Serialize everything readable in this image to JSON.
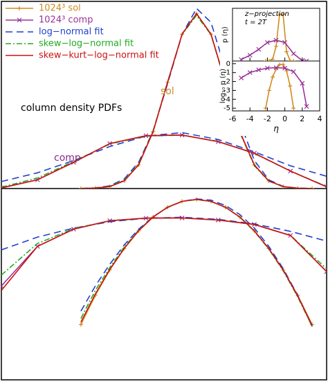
{
  "chart_data": [
    {
      "type": "line",
      "xlim": [
        -3,
        1.5
      ],
      "panels": [
        {
          "scale": "linear",
          "ylim": [
            0,
            1.07
          ]
        },
        {
          "scale": "log",
          "ylim": [
            1e-05,
            2
          ]
        }
      ],
      "legend": "upper left",
      "annotations": [
        {
          "text": "sol",
          "color": "#c98a2a"
        },
        {
          "text": "comp",
          "color": "#8a2a8a"
        },
        {
          "text": "column density PDFs",
          "color": "#000000"
        }
      ],
      "series": [
        {
          "name": "1024³  sol",
          "color": "#d08a20",
          "marker": "+",
          "x": [
            -1.9,
            -1.7,
            -1.5,
            -1.3,
            -1.1,
            -0.9,
            -0.7,
            -0.5,
            -0.3,
            -0.1,
            0.1,
            0.3,
            0.5,
            0.7,
            0.9,
            1.1,
            1.3
          ],
          "values": [
            0.00034,
            0.0022,
            0.0111,
            0.0439,
            0.135,
            0.325,
            0.607,
            0.882,
            1,
            0.882,
            0.607,
            0.325,
            0.135,
            0.0439,
            0.0111,
            0.0022,
            0.00034
          ]
        },
        {
          "name": "1024³  comp",
          "color": "#993399",
          "marker": "x",
          "x": [
            -3,
            -2.5,
            -2,
            -1.5,
            -1,
            -0.5,
            0,
            0.5,
            1,
            1.5
          ],
          "values": [
            0.004,
            0.05,
            0.15,
            0.257,
            0.302,
            0.306,
            0.268,
            0.202,
            0.1,
            0.01
          ]
        },
        {
          "name": "log−normal fit",
          "color": "#1f3fd0",
          "dash": "10,6",
          "x": [
            -1.9,
            -1.7,
            -1.5,
            -1.3,
            -1.1,
            -0.9,
            -0.7,
            -0.5,
            -0.3,
            -0.1,
            0.1,
            0.3,
            0.5,
            0.7,
            0.9,
            1.1,
            1.3,
            null,
            -3,
            -2.5,
            -2,
            -1.5,
            -1,
            -0.5,
            0,
            0.5,
            1,
            1.5
          ],
          "values": [
            0.0008,
            0.004,
            0.016,
            0.055,
            0.15,
            0.33,
            0.6,
            0.88,
            1.03,
            0.95,
            0.68,
            0.38,
            0.16,
            0.05,
            0.012,
            0.0022,
            0.0003,
            null,
            0.04,
            0.09,
            0.16,
            0.24,
            0.3,
            0.32,
            0.28,
            0.21,
            0.13,
            0.07
          ]
        },
        {
          "name": "skew−log−normal fit",
          "color": "#22aa22",
          "dash": "8,3,2,3",
          "x": [
            -1.9,
            -1.7,
            -1.5,
            -1.3,
            -1.1,
            -0.9,
            -0.7,
            -0.5,
            -0.3,
            -0.1,
            0.1,
            0.3,
            0.5,
            0.7,
            0.9,
            1.1,
            1.3,
            null,
            -3,
            -2.5,
            -2,
            -1.5,
            -1,
            -0.5,
            0,
            0.5,
            1,
            1.5
          ],
          "values": [
            0.0005,
            0.003,
            0.013,
            0.048,
            0.14,
            0.33,
            0.61,
            0.88,
            0.99,
            0.88,
            0.6,
            0.32,
            0.13,
            0.042,
            0.0105,
            0.002,
            0.0003,
            null,
            0.008,
            0.06,
            0.155,
            0.255,
            0.3,
            0.305,
            0.27,
            0.2,
            0.1,
            0.012
          ]
        },
        {
          "name": "skew−kurt−log−normal fit",
          "color": "#cc1111",
          "x": [
            -1.9,
            -1.7,
            -1.5,
            -1.3,
            -1.1,
            -0.9,
            -0.7,
            -0.5,
            -0.3,
            -0.1,
            0.1,
            0.3,
            0.5,
            0.7,
            0.9,
            1.1,
            1.3,
            null,
            -3,
            -2.5,
            -2,
            -1.5,
            -1,
            -0.5,
            0,
            0.5,
            1,
            1.5
          ],
          "values": [
            0.0004,
            0.0024,
            0.0115,
            0.044,
            0.136,
            0.326,
            0.607,
            0.882,
            1,
            0.882,
            0.606,
            0.324,
            0.134,
            0.0435,
            0.011,
            0.0021,
            0.00032,
            null,
            0.003,
            0.05,
            0.15,
            0.257,
            0.302,
            0.306,
            0.268,
            0.202,
            0.1,
            0.01
          ]
        }
      ]
    },
    {
      "type": "line",
      "annotations": [
        "z−projection",
        "t = 2T"
      ],
      "xlabel": "η",
      "ylabels": [
        "p (η)",
        "log₁₀ p (η)"
      ],
      "xlim": [
        -6,
        4
      ],
      "xticks": [
        -6,
        -4,
        -2,
        0,
        2,
        4
      ],
      "panels": [
        {
          "scale": "linear-of-log10",
          "ylim": [
            0,
            0.9
          ]
        },
        {
          "scale": "log10",
          "ylim": [
            -5.3,
            0.3
          ],
          "yticks": [
            0,
            -1,
            -2,
            -3,
            -4,
            -5
          ]
        }
      ],
      "series": [
        {
          "color": "#d08a20",
          "marker": "+",
          "x": [
            -2.2,
            -1.8,
            -1.4,
            -1,
            -0.6,
            -0.2,
            0.2,
            0.6,
            1
          ],
          "values": [
            -5,
            -3,
            -1.5,
            -0.6,
            -0.1,
            -0.1,
            -0.8,
            -2.5,
            -5
          ]
        },
        {
          "color": "#993399",
          "marker": "x",
          "x": [
            -5,
            -4,
            -3,
            -2,
            -1,
            0,
            1,
            2,
            2.5
          ],
          "values": [
            -1.6,
            -1,
            -0.7,
            -0.5,
            -0.45,
            -0.5,
            -0.9,
            -2.2,
            -4.8
          ]
        }
      ]
    }
  ]
}
